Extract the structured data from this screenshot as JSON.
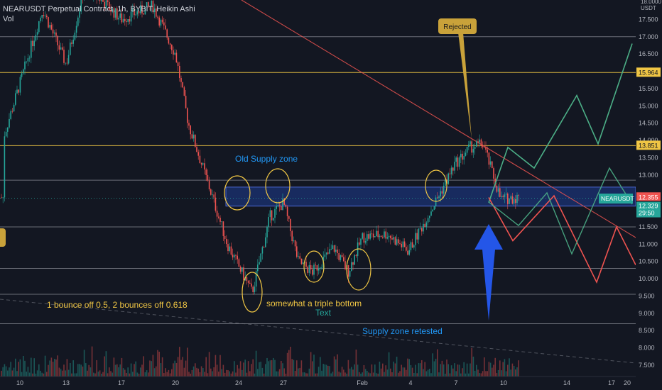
{
  "header": {
    "title": "NEARUSDT Perpetual Contract, 1h, BYBIT, Heikin Ashi",
    "volume_label": "Vol"
  },
  "price_axis": {
    "currency": "USDT",
    "top_value": "18.0000",
    "ticks": [
      "17.500",
      "17.000",
      "16.500",
      "15.964",
      "15.500",
      "15.000",
      "14.500",
      "14.000",
      "13.851",
      "13.500",
      "13.000",
      "12.355",
      "12.329",
      "29:50",
      "11.500",
      "11.000",
      "10.500",
      "10.000",
      "9.500",
      "9.000",
      "8.500",
      "8.000",
      "7.500"
    ]
  },
  "time_axis": {
    "labels": [
      "10",
      "13",
      "17",
      "20",
      "24",
      "27",
      "Feb",
      "4",
      "7",
      "10",
      "14",
      "17",
      "20"
    ]
  },
  "symbol_tag": "NEARUSDT",
  "last_price": "12.355",
  "current_price": "12.329",
  "countdown": "29:50",
  "resistance_levels": [
    "15.964",
    "13.851"
  ],
  "annotations": {
    "rejected": "Rejected",
    "old_supply_zone": "Old Supply zone",
    "bounce_note": "1 bounce off 0.5, 2 bounces off 0.618",
    "triple_bottom": "somewhat a triple bottom",
    "text_label": "Text",
    "supply_retested": "Supply zone retested"
  },
  "colors": {
    "background": "#131722",
    "bull": "#26a69a",
    "bear": "#ef5350",
    "level_white": "#b2b5be",
    "level_yellow": "#f0c644",
    "zone": "#2962ff",
    "arrow": "#2456e8",
    "ellipse": "#f0c644",
    "trendline": "#ef5350"
  },
  "chart_data": {
    "type": "candlestick",
    "symbol": "NEARUSDT",
    "timeframe": "1h",
    "exchange": "BYBIT",
    "x_ticks": [
      "10",
      "13",
      "17",
      "20",
      "24",
      "27",
      "Feb",
      "4",
      "7",
      "10",
      "14",
      "17",
      "20"
    ],
    "ylim": [
      7.3,
      18.0
    ],
    "horizontal_levels": [
      17.0,
      15.964,
      13.851,
      12.85,
      11.5,
      10.3,
      9.55,
      8.7
    ],
    "supply_zone": [
      12.1,
      12.65
    ],
    "price_path": [
      {
        "x": "10",
        "y": 14.1
      },
      {
        "x": "12",
        "y": 17.8
      },
      {
        "x": "13",
        "y": 16.2
      },
      {
        "x": "15",
        "y": 18.5
      },
      {
        "x": "17",
        "y": 17.5
      },
      {
        "x": "19",
        "y": 17.9
      },
      {
        "x": "20",
        "y": 16.5
      },
      {
        "x": "21",
        "y": 14.5
      },
      {
        "x": "22",
        "y": 12.3
      },
      {
        "x": "23",
        "y": 11.0
      },
      {
        "x": "24",
        "y": 9.6
      },
      {
        "x": "25",
        "y": 11.8
      },
      {
        "x": "26",
        "y": 12.2
      },
      {
        "x": "27",
        "y": 10.5
      },
      {
        "x": "28",
        "y": 10.2
      },
      {
        "x": "29",
        "y": 10.9
      },
      {
        "x": "30",
        "y": 10.2
      },
      {
        "x": "31",
        "y": 11.2
      },
      {
        "x": "Feb 1",
        "y": 11.3
      },
      {
        "x": "3",
        "y": 10.8
      },
      {
        "x": "4",
        "y": 12.3
      },
      {
        "x": "6",
        "y": 13.3
      },
      {
        "x": "7",
        "y": 13.8
      },
      {
        "x": "8",
        "y": 13.9
      },
      {
        "x": "9",
        "y": 12.3
      },
      {
        "x": "10",
        "y": 12.35
      }
    ],
    "projection_green": [
      12.2,
      13.8,
      13.2,
      15.3,
      13.9,
      16.8
    ],
    "projection_red": [
      12.35,
      11.1,
      12.4,
      9.9,
      11.5,
      10.4
    ]
  }
}
